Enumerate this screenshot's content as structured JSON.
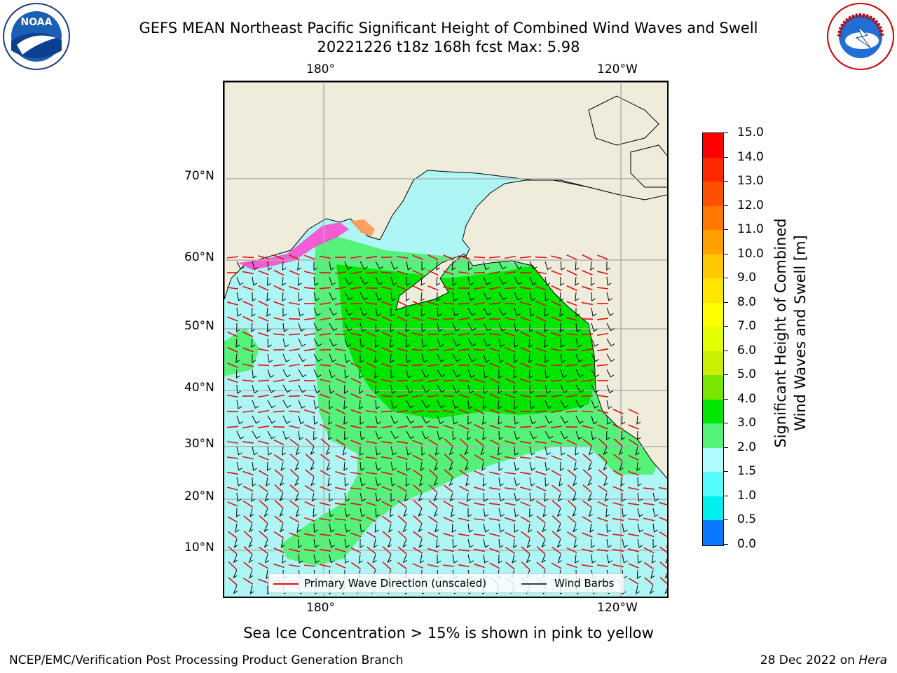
{
  "header": {
    "title_line1": "GEFS MEAN Northeast Pacific Significant Height of Combined Wind Waves and Swell",
    "title_line2": "20221226 t18z 168h fcst   Max: 5.98"
  },
  "logos": {
    "left": {
      "name": "noaa-logo",
      "text": "NOAA"
    },
    "right": {
      "name": "national-weather-service-logo",
      "text": "NATIONAL WEATHER SERVICE"
    }
  },
  "map": {
    "lon_labels_top": [
      "180°",
      "120°W"
    ],
    "lon_labels_bottom": [
      "180°",
      "120°W"
    ],
    "lat_labels": [
      "70°N",
      "60°N",
      "50°N",
      "40°N",
      "30°N",
      "20°N",
      "10°N"
    ],
    "land_color": "#efecdc",
    "ocean_low_color": "#aef6f6",
    "wave_3_4_color": "#55f27a",
    "wave_4_5_color": "#00e600",
    "ice_color": "#ff44cc",
    "wave_arrow_color": "#e01010",
    "barb_color": "#000000"
  },
  "legend": {
    "wave_direction": "Primary Wave Direction (unscaled)",
    "wind_barbs": "Wind Barbs"
  },
  "colorbar": {
    "label_line1": "Significant Height of Combined",
    "label_line2": "Wind Waves and Swell [m]",
    "ticks": [
      "15.0",
      "14.0",
      "13.0",
      "12.0",
      "11.0",
      "10.0",
      "9.0",
      "8.0",
      "7.0",
      "6.0",
      "5.0",
      "4.0",
      "3.0",
      "2.0",
      "1.5",
      "1.0",
      "0.5",
      "0.0"
    ],
    "colors": [
      "#ff0000",
      "#ff2800",
      "#ff5000",
      "#ff7800",
      "#ffa000",
      "#ffc800",
      "#ffe600",
      "#ffff00",
      "#e6ff00",
      "#c8f000",
      "#7ae600",
      "#00e600",
      "#55f27a",
      "#aefcfc",
      "#55fcfc",
      "#00f0f0",
      "#0a78ff",
      "#0000ff"
    ]
  },
  "footer": {
    "ice_note": "Sea Ice Concentration > 15% is shown in pink to yellow",
    "branch": "NCEP/EMC/Verification Post Processing Product Generation Branch",
    "date_prefix": "28 Dec 2022 on ",
    "machine": "Hera"
  }
}
